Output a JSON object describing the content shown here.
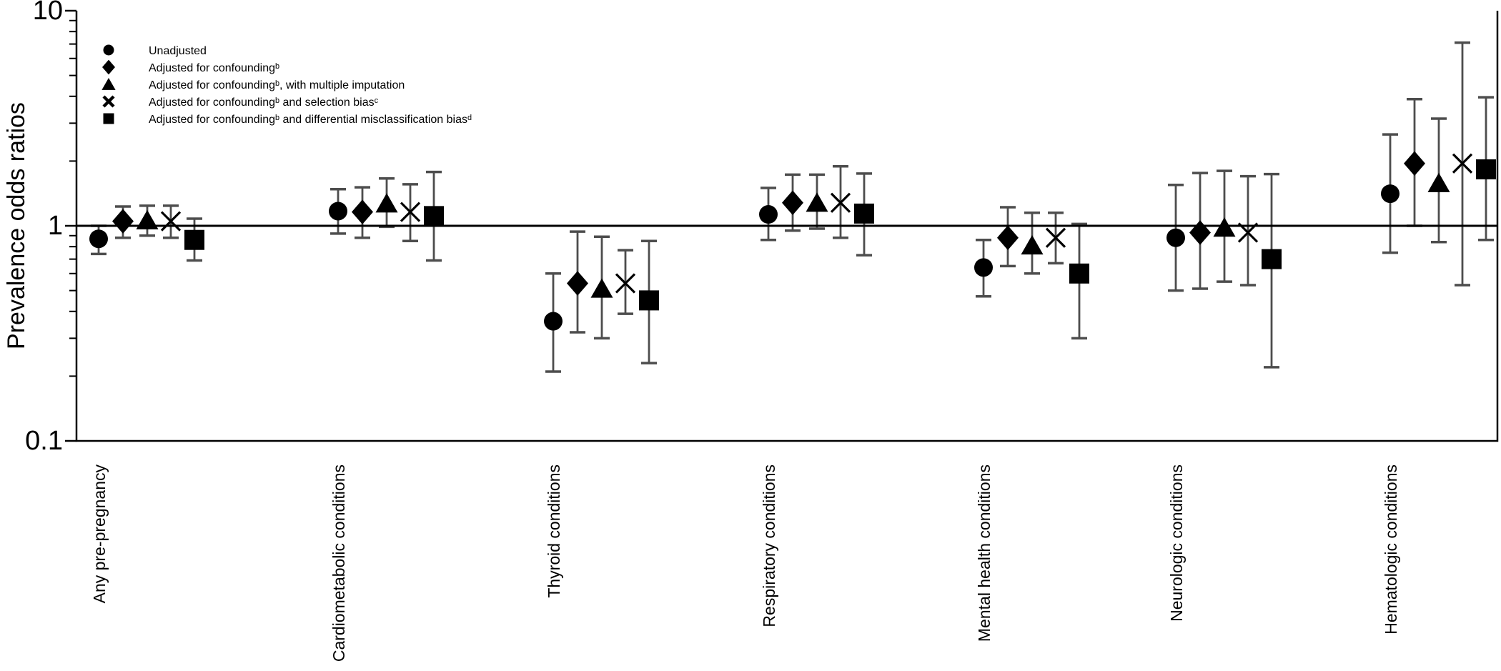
{
  "chart_data": {
    "type": "scatter",
    "subtype": "forest-plot",
    "title": "",
    "ylabel": "Prevalence odds ratios",
    "xlabel": "",
    "yscale": "log",
    "ylim": [
      0.1,
      10
    ],
    "yticks": [
      10,
      1,
      0.1
    ],
    "reference_line": 1,
    "grid": "off",
    "legend_position": "top-left-inside",
    "categories": [
      "Any pre-pregnancy",
      "Cardiometabolic conditions",
      "Thyroid conditions",
      "Respiratory conditions",
      "Mental health conditions",
      "Neurologic conditions",
      "Hematologic conditions"
    ],
    "series": [
      {
        "name": "Unadjusted",
        "symbol": "circle",
        "values": [
          0.87,
          1.17,
          0.36,
          1.13,
          0.64,
          0.88,
          1.41
        ],
        "ci_low": [
          0.74,
          0.92,
          0.21,
          0.86,
          0.47,
          0.5,
          0.75
        ],
        "ci_high": [
          1.0,
          1.48,
          0.6,
          1.5,
          0.86,
          1.55,
          2.66
        ]
      },
      {
        "name": "Adjusted for confoundingᵇ",
        "symbol": "diamond",
        "values": [
          1.05,
          1.16,
          0.54,
          1.28,
          0.88,
          0.93,
          1.95
        ],
        "ci_low": [
          0.88,
          0.88,
          0.32,
          0.95,
          0.65,
          0.51,
          1.0
        ],
        "ci_high": [
          1.23,
          1.51,
          0.94,
          1.73,
          1.22,
          1.76,
          3.88
        ]
      },
      {
        "name": "Adjusted for confoundingᵇ, with multiple imputation",
        "symbol": "triangle",
        "values": [
          1.06,
          1.27,
          0.51,
          1.28,
          0.81,
          0.98,
          1.58
        ],
        "ci_low": [
          0.9,
          0.99,
          0.3,
          0.97,
          0.6,
          0.55,
          0.84
        ],
        "ci_high": [
          1.24,
          1.66,
          0.89,
          1.73,
          1.15,
          1.8,
          3.15
        ]
      },
      {
        "name": "Adjusted for confoundingᵇ and selection biasᶜ",
        "symbol": "x",
        "values": [
          1.05,
          1.16,
          0.54,
          1.28,
          0.88,
          0.93,
          1.95
        ],
        "ci_low": [
          0.88,
          0.85,
          0.39,
          0.88,
          0.67,
          0.53,
          0.53
        ],
        "ci_high": [
          1.24,
          1.56,
          0.77,
          1.89,
          1.15,
          1.7,
          7.1
        ]
      },
      {
        "name": "Adjusted for confoundingᵇ and differential misclassification biasᵈ",
        "symbol": "square",
        "values": [
          0.86,
          1.11,
          0.45,
          1.14,
          0.6,
          0.7,
          1.83
        ],
        "ci_low": [
          0.69,
          0.69,
          0.23,
          0.73,
          0.3,
          0.22,
          0.86
        ],
        "ci_high": [
          1.08,
          1.78,
          0.85,
          1.75,
          1.02,
          1.74,
          3.96
        ]
      }
    ],
    "colors": {
      "marker": "#000000",
      "error_bar": "#4d4d4d",
      "axis": "#000000",
      "reference_line": "#000000",
      "background": "#ffffff"
    }
  }
}
